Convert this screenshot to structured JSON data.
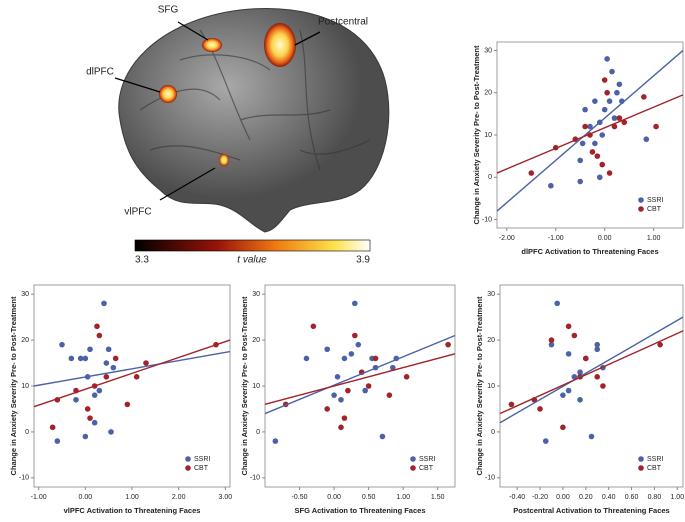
{
  "brain": {
    "labels": [
      "SFG",
      "Postcentral",
      "dlPFC",
      "vlPFC"
    ],
    "colorbar": {
      "min": 3.3,
      "label": "t value",
      "max": 3.9
    }
  },
  "chart_data": [
    {
      "type": "scatter",
      "x_label": "dlPFC Activation to Threatening Faces",
      "y_label": "Change in Anxiety Severity Pre- to Post-Treatment",
      "xlim": [
        -2.2,
        1.6
      ],
      "ylim": [
        -12,
        32
      ],
      "xticks": [
        {
          "value": -2,
          "label": "-2.00"
        },
        {
          "value": -1,
          "label": "-1.00"
        },
        {
          "value": 0,
          "label": "0.00"
        },
        {
          "value": 1,
          "label": "1.00"
        }
      ],
      "yticks": [
        -10,
        0,
        10,
        20,
        30
      ],
      "legend": "lower right",
      "series": [
        {
          "name": "SSRI",
          "color": "#4b62a6",
          "x": [
            -1.1,
            -0.5,
            -0.5,
            -0.45,
            -0.3,
            -0.2,
            -0.1,
            -0.05,
            0,
            0.05,
            0.1,
            0.2,
            0.25,
            0.3,
            0.35,
            -0.2,
            -0.4,
            0.85,
            0.15,
            -0.1
          ],
          "y": [
            -2,
            -1,
            4,
            8,
            12,
            8,
            0,
            10,
            16,
            28,
            18,
            14,
            20,
            22,
            18,
            18,
            16,
            9,
            25,
            13
          ],
          "fit": {
            "x": [
              -2.2,
              1.6
            ],
            "y": [
              -8,
              30
            ]
          }
        },
        {
          "name": "CBT",
          "color": "#a3232a",
          "x": [
            -1.5,
            -1,
            -0.6,
            -0.4,
            -0.3,
            -0.15,
            0,
            0.05,
            0.1,
            0.2,
            0.4,
            0.8,
            1.05,
            -0.25,
            0.3,
            -0.05
          ],
          "y": [
            1,
            7,
            9,
            12,
            10,
            5,
            23,
            20,
            1,
            12,
            13,
            19,
            12,
            6,
            14,
            3
          ],
          "fit": {
            "x": [
              -2.2,
              1.6
            ],
            "y": [
              1,
              19.5
            ]
          }
        }
      ]
    },
    {
      "type": "scatter",
      "x_label": "vlPFC Activation to Threatening Faces",
      "y_label": "Change in Anxiety Severity Pre- to Post-Treatment",
      "xlim": [
        -1.1,
        3.1
      ],
      "ylim": [
        -12,
        32
      ],
      "xticks": [
        {
          "value": -1,
          "label": "-1.00"
        },
        {
          "value": 0,
          "label": "0.00"
        },
        {
          "value": 1,
          "label": "1.00"
        },
        {
          "value": 2,
          "label": "2.00"
        },
        {
          "value": 3,
          "label": "3.00"
        }
      ],
      "yticks": [
        -10,
        0,
        10,
        20,
        30
      ],
      "legend": "lower right",
      "series": [
        {
          "name": "SSRI",
          "color": "#4b62a6",
          "x": [
            -0.6,
            -0.5,
            -0.3,
            -0.1,
            0,
            0.05,
            0.1,
            0.2,
            0.3,
            0.4,
            0.45,
            0.5,
            0.55,
            0.6,
            0.0,
            0.2,
            -0.2
          ],
          "y": [
            -2,
            19,
            16,
            16,
            -1,
            12,
            18,
            8,
            9,
            28,
            15,
            18,
            0,
            14,
            16,
            2,
            7
          ],
          "fit": {
            "x": [
              -1.1,
              3.1
            ],
            "y": [
              10,
              17.5
            ]
          }
        },
        {
          "name": "CBT",
          "color": "#a3232a",
          "x": [
            -0.7,
            -0.6,
            -0.2,
            0.05,
            0.1,
            0.25,
            0.3,
            0.45,
            0.65,
            0.9,
            1.1,
            1.3,
            2.8,
            0.2
          ],
          "y": [
            1,
            7,
            9,
            5,
            3,
            23,
            21,
            12,
            16,
            6,
            12,
            15,
            19,
            10
          ],
          "fit": {
            "x": [
              -1.1,
              3.1
            ],
            "y": [
              5.5,
              20
            ]
          }
        }
      ]
    },
    {
      "type": "scatter",
      "x_label": "SFG Activation to Threatening Faces",
      "y_label": "Change in Anxiety Severity Pre- to Post-Treatment",
      "xlim": [
        -1.0,
        1.75
      ],
      "ylim": [
        -12,
        32
      ],
      "xticks": [
        {
          "value": -0.5,
          "label": "-0.50"
        },
        {
          "value": 0,
          "label": "0.00"
        },
        {
          "value": 0.5,
          "label": "0.50"
        },
        {
          "value": 1,
          "label": "1.00"
        },
        {
          "value": 1.5,
          "label": "1.50"
        }
      ],
      "yticks": [
        -10,
        0,
        10,
        20,
        30
      ],
      "legend": "lower right",
      "series": [
        {
          "name": "SSRI",
          "color": "#4b62a6",
          "x": [
            -0.85,
            -0.4,
            -0.1,
            0.0,
            0.1,
            0.15,
            0.25,
            0.3,
            0.35,
            0.45,
            0.55,
            0.6,
            0.7,
            0.85,
            0.9,
            0.05
          ],
          "y": [
            -2,
            16,
            18,
            8,
            7,
            16,
            17,
            28,
            19,
            9,
            16,
            14,
            -1,
            14,
            16,
            12
          ],
          "fit": {
            "x": [
              -1.0,
              1.75
            ],
            "y": [
              4,
              21
            ]
          }
        },
        {
          "name": "CBT",
          "color": "#a3232a",
          "x": [
            -0.7,
            -0.3,
            -0.1,
            0.1,
            0.2,
            0.3,
            0.4,
            0.5,
            0.6,
            0.8,
            1.05,
            1.65,
            0.15
          ],
          "y": [
            6,
            23,
            5,
            1,
            9,
            21,
            13,
            10,
            16,
            8,
            12,
            19,
            3
          ],
          "fit": {
            "x": [
              -1.0,
              1.75
            ],
            "y": [
              6,
              17
            ]
          }
        }
      ]
    },
    {
      "type": "scatter",
      "x_label": "Postcentral Activation to Threatening Faces",
      "y_label": "Change in Anxiety Severity Pre- to Post-Treatment",
      "xlim": [
        -0.55,
        1.05
      ],
      "ylim": [
        -12,
        32
      ],
      "xticks": [
        {
          "value": -0.4,
          "label": "-0.40"
        },
        {
          "value": -0.2,
          "label": "-0.20"
        },
        {
          "value": 0,
          "label": "0.00"
        },
        {
          "value": 0.2,
          "label": "0.20"
        },
        {
          "value": 0.4,
          "label": "0.40"
        },
        {
          "value": 0.6,
          "label": "0.60"
        },
        {
          "value": 0.8,
          "label": "0.80"
        },
        {
          "value": 1,
          "label": "1.00"
        }
      ],
      "yticks": [
        -10,
        0,
        10,
        20,
        30
      ],
      "legend": "lower right",
      "series": [
        {
          "name": "SSRI",
          "color": "#4b62a6",
          "x": [
            -0.15,
            -0.05,
            0.0,
            0.05,
            0.1,
            0.15,
            0.2,
            0.25,
            0.3,
            0.3,
            0.35,
            -0.1,
            0.15,
            0.05
          ],
          "y": [
            -2,
            28,
            8,
            17,
            12,
            13,
            16,
            -1,
            18,
            19,
            14,
            19,
            7,
            9
          ],
          "fit": {
            "x": [
              -0.55,
              1.05
            ],
            "y": [
              2,
              25
            ]
          }
        },
        {
          "name": "CBT",
          "color": "#a3232a",
          "x": [
            -0.45,
            -0.25,
            -0.2,
            -0.1,
            0.0,
            0.05,
            0.1,
            0.2,
            0.3,
            0.35,
            0.85,
            0.15
          ],
          "y": [
            6,
            7,
            5,
            20,
            1,
            23,
            21,
            16,
            12,
            10,
            19,
            12
          ],
          "fit": {
            "x": [
              -0.55,
              1.05
            ],
            "y": [
              4,
              22
            ]
          }
        }
      ]
    }
  ]
}
